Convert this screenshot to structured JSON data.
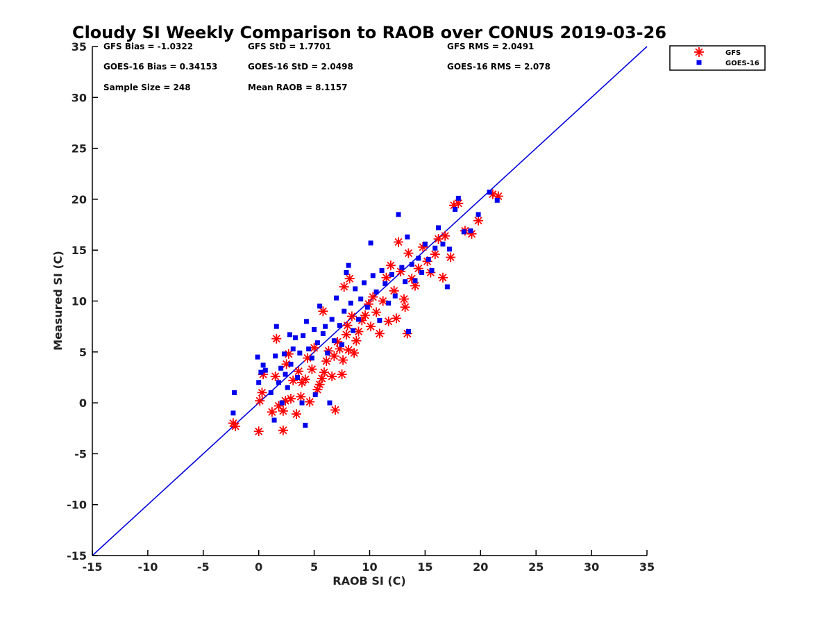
{
  "chart_data": {
    "type": "scatter",
    "title": "Cloudy SI Weekly Comparison to RAOB over CONUS 2019-03-26",
    "xlabel": "RAOB SI (C)",
    "ylabel": "Measured SI (C)",
    "xlim": [
      -15,
      35
    ],
    "ylim": [
      -15,
      35
    ],
    "xticks": [
      -15,
      -10,
      -5,
      0,
      5,
      10,
      15,
      20,
      25,
      30,
      35
    ],
    "yticks": [
      -15,
      -10,
      -5,
      0,
      5,
      10,
      15,
      20,
      25,
      30,
      35
    ],
    "grid": false,
    "legend_position": "top-right-outside",
    "reference_line": {
      "description": "1:1 line",
      "color": "#0000dd",
      "from": [
        -15,
        -15
      ],
      "to": [
        35,
        35
      ]
    },
    "stats": [
      {
        "text": "GFS Bias = -1.0322"
      },
      {
        "text": "GFS StD = 1.7701"
      },
      {
        "text": "GFS RMS = 2.0491"
      },
      {
        "text": "GOES-16 Bias = 0.34153"
      },
      {
        "text": "GOES-16 StD = 2.0498"
      },
      {
        "text": "GOES-16 RMS = 2.078"
      },
      {
        "text": "Sample Size = 248"
      },
      {
        "text": "Mean RAOB = 8.1157"
      }
    ],
    "series": [
      {
        "name": "GFS",
        "marker": "asterisk",
        "color": "#ff0000",
        "points": [
          [
            -2.3,
            -2.0
          ],
          [
            -2.1,
            -2.3
          ],
          [
            0.0,
            -2.8
          ],
          [
            0.1,
            0.2
          ],
          [
            0.3,
            1.0
          ],
          [
            0.4,
            2.8
          ],
          [
            1.2,
            -0.9
          ],
          [
            1.5,
            2.6
          ],
          [
            1.6,
            6.3
          ],
          [
            1.8,
            -0.3
          ],
          [
            2.2,
            -2.7
          ],
          [
            2.2,
            -0.8
          ],
          [
            2.4,
            0.2
          ],
          [
            2.5,
            3.8
          ],
          [
            2.7,
            4.8
          ],
          [
            2.9,
            0.4
          ],
          [
            3.1,
            2.2
          ],
          [
            3.4,
            -1.1
          ],
          [
            3.6,
            3.1
          ],
          [
            3.8,
            0.6
          ],
          [
            3.9,
            2.0
          ],
          [
            4.2,
            2.3
          ],
          [
            4.4,
            4.4
          ],
          [
            4.6,
            0.1
          ],
          [
            4.8,
            3.3
          ],
          [
            5.0,
            5.4
          ],
          [
            5.3,
            1.3
          ],
          [
            5.5,
            1.8
          ],
          [
            5.7,
            2.4
          ],
          [
            5.9,
            3.0
          ],
          [
            5.8,
            9.0
          ],
          [
            6.1,
            4.1
          ],
          [
            6.3,
            5.1
          ],
          [
            6.6,
            2.6
          ],
          [
            6.8,
            4.6
          ],
          [
            6.9,
            -0.7
          ],
          [
            7.1,
            6.0
          ],
          [
            7.3,
            5.3
          ],
          [
            7.5,
            2.8
          ],
          [
            7.6,
            4.2
          ],
          [
            7.7,
            11.4
          ],
          [
            7.9,
            6.7
          ],
          [
            8.0,
            7.6
          ],
          [
            8.1,
            5.2
          ],
          [
            8.2,
            12.2
          ],
          [
            8.4,
            8.5
          ],
          [
            8.6,
            4.9
          ],
          [
            8.8,
            6.1
          ],
          [
            9.0,
            7.0
          ],
          [
            9.3,
            8.1
          ],
          [
            9.6,
            8.6
          ],
          [
            9.9,
            9.7
          ],
          [
            10.1,
            7.5
          ],
          [
            10.3,
            10.4
          ],
          [
            10.6,
            8.9
          ],
          [
            10.9,
            6.8
          ],
          [
            11.2,
            10.0
          ],
          [
            11.5,
            12.3
          ],
          [
            11.7,
            8.0
          ],
          [
            11.9,
            13.5
          ],
          [
            12.2,
            11.0
          ],
          [
            12.4,
            8.3
          ],
          [
            12.6,
            15.8
          ],
          [
            12.8,
            12.9
          ],
          [
            13.1,
            10.2
          ],
          [
            13.2,
            9.4
          ],
          [
            13.4,
            6.8
          ],
          [
            13.5,
            14.7
          ],
          [
            13.8,
            12.2
          ],
          [
            14.1,
            11.5
          ],
          [
            14.4,
            13.2
          ],
          [
            14.8,
            15.3
          ],
          [
            15.2,
            13.9
          ],
          [
            15.5,
            12.8
          ],
          [
            15.9,
            14.6
          ],
          [
            16.2,
            16.1
          ],
          [
            16.6,
            12.3
          ],
          [
            16.8,
            16.4
          ],
          [
            17.3,
            14.3
          ],
          [
            17.6,
            19.4
          ],
          [
            18.0,
            19.6
          ],
          [
            18.6,
            16.9
          ],
          [
            19.2,
            16.6
          ],
          [
            19.8,
            17.9
          ],
          [
            21.1,
            20.5
          ],
          [
            21.6,
            20.3
          ]
        ]
      },
      {
        "name": "GOES-16",
        "marker": "square",
        "color": "#0000ee",
        "points": [
          [
            -2.3,
            -1.0
          ],
          [
            -2.2,
            1.0
          ],
          [
            -0.1,
            4.5
          ],
          [
            0.0,
            2.0
          ],
          [
            0.2,
            3.0
          ],
          [
            0.4,
            3.7
          ],
          [
            0.6,
            3.2
          ],
          [
            1.1,
            1.0
          ],
          [
            1.4,
            -1.7
          ],
          [
            1.5,
            4.6
          ],
          [
            1.6,
            7.5
          ],
          [
            1.8,
            2.0
          ],
          [
            2.0,
            3.4
          ],
          [
            2.1,
            0.0
          ],
          [
            2.3,
            4.8
          ],
          [
            2.4,
            2.8
          ],
          [
            2.6,
            1.5
          ],
          [
            2.8,
            6.7
          ],
          [
            2.9,
            3.8
          ],
          [
            3.1,
            5.3
          ],
          [
            3.3,
            6.4
          ],
          [
            3.5,
            2.5
          ],
          [
            3.7,
            4.9
          ],
          [
            3.9,
            0.0
          ],
          [
            4.0,
            6.6
          ],
          [
            4.2,
            -2.2
          ],
          [
            4.3,
            8.0
          ],
          [
            4.5,
            5.3
          ],
          [
            4.8,
            4.4
          ],
          [
            5.0,
            7.2
          ],
          [
            5.1,
            0.8
          ],
          [
            5.3,
            5.9
          ],
          [
            5.5,
            9.5
          ],
          [
            5.8,
            6.8
          ],
          [
            6.0,
            7.5
          ],
          [
            6.2,
            4.9
          ],
          [
            6.4,
            0.0
          ],
          [
            6.6,
            8.2
          ],
          [
            6.8,
            6.1
          ],
          [
            7.0,
            10.3
          ],
          [
            7.3,
            7.6
          ],
          [
            7.5,
            5.7
          ],
          [
            7.7,
            9.0
          ],
          [
            7.9,
            12.8
          ],
          [
            8.1,
            13.5
          ],
          [
            8.3,
            9.8
          ],
          [
            8.5,
            7.1
          ],
          [
            8.7,
            11.2
          ],
          [
            9.0,
            8.2
          ],
          [
            9.2,
            10.2
          ],
          [
            9.5,
            11.8
          ],
          [
            9.8,
            9.4
          ],
          [
            10.1,
            15.7
          ],
          [
            10.3,
            12.5
          ],
          [
            10.6,
            10.9
          ],
          [
            10.9,
            8.1
          ],
          [
            11.1,
            13.0
          ],
          [
            11.4,
            11.7
          ],
          [
            11.7,
            9.8
          ],
          [
            12.0,
            12.6
          ],
          [
            12.3,
            10.5
          ],
          [
            12.6,
            18.5
          ],
          [
            12.9,
            13.3
          ],
          [
            13.2,
            11.9
          ],
          [
            13.4,
            16.3
          ],
          [
            13.5,
            7.0
          ],
          [
            13.8,
            13.6
          ],
          [
            14.1,
            12.0
          ],
          [
            14.4,
            14.2
          ],
          [
            14.7,
            12.8
          ],
          [
            15.0,
            15.6
          ],
          [
            15.3,
            14.1
          ],
          [
            15.6,
            13.0
          ],
          [
            15.9,
            15.2
          ],
          [
            16.2,
            17.2
          ],
          [
            16.6,
            15.6
          ],
          [
            17.0,
            11.4
          ],
          [
            17.2,
            15.1
          ],
          [
            17.7,
            19.0
          ],
          [
            18.0,
            20.1
          ],
          [
            18.5,
            16.8
          ],
          [
            19.1,
            16.9
          ],
          [
            19.8,
            18.5
          ],
          [
            20.8,
            20.7
          ],
          [
            21.5,
            19.9
          ]
        ]
      }
    ]
  }
}
